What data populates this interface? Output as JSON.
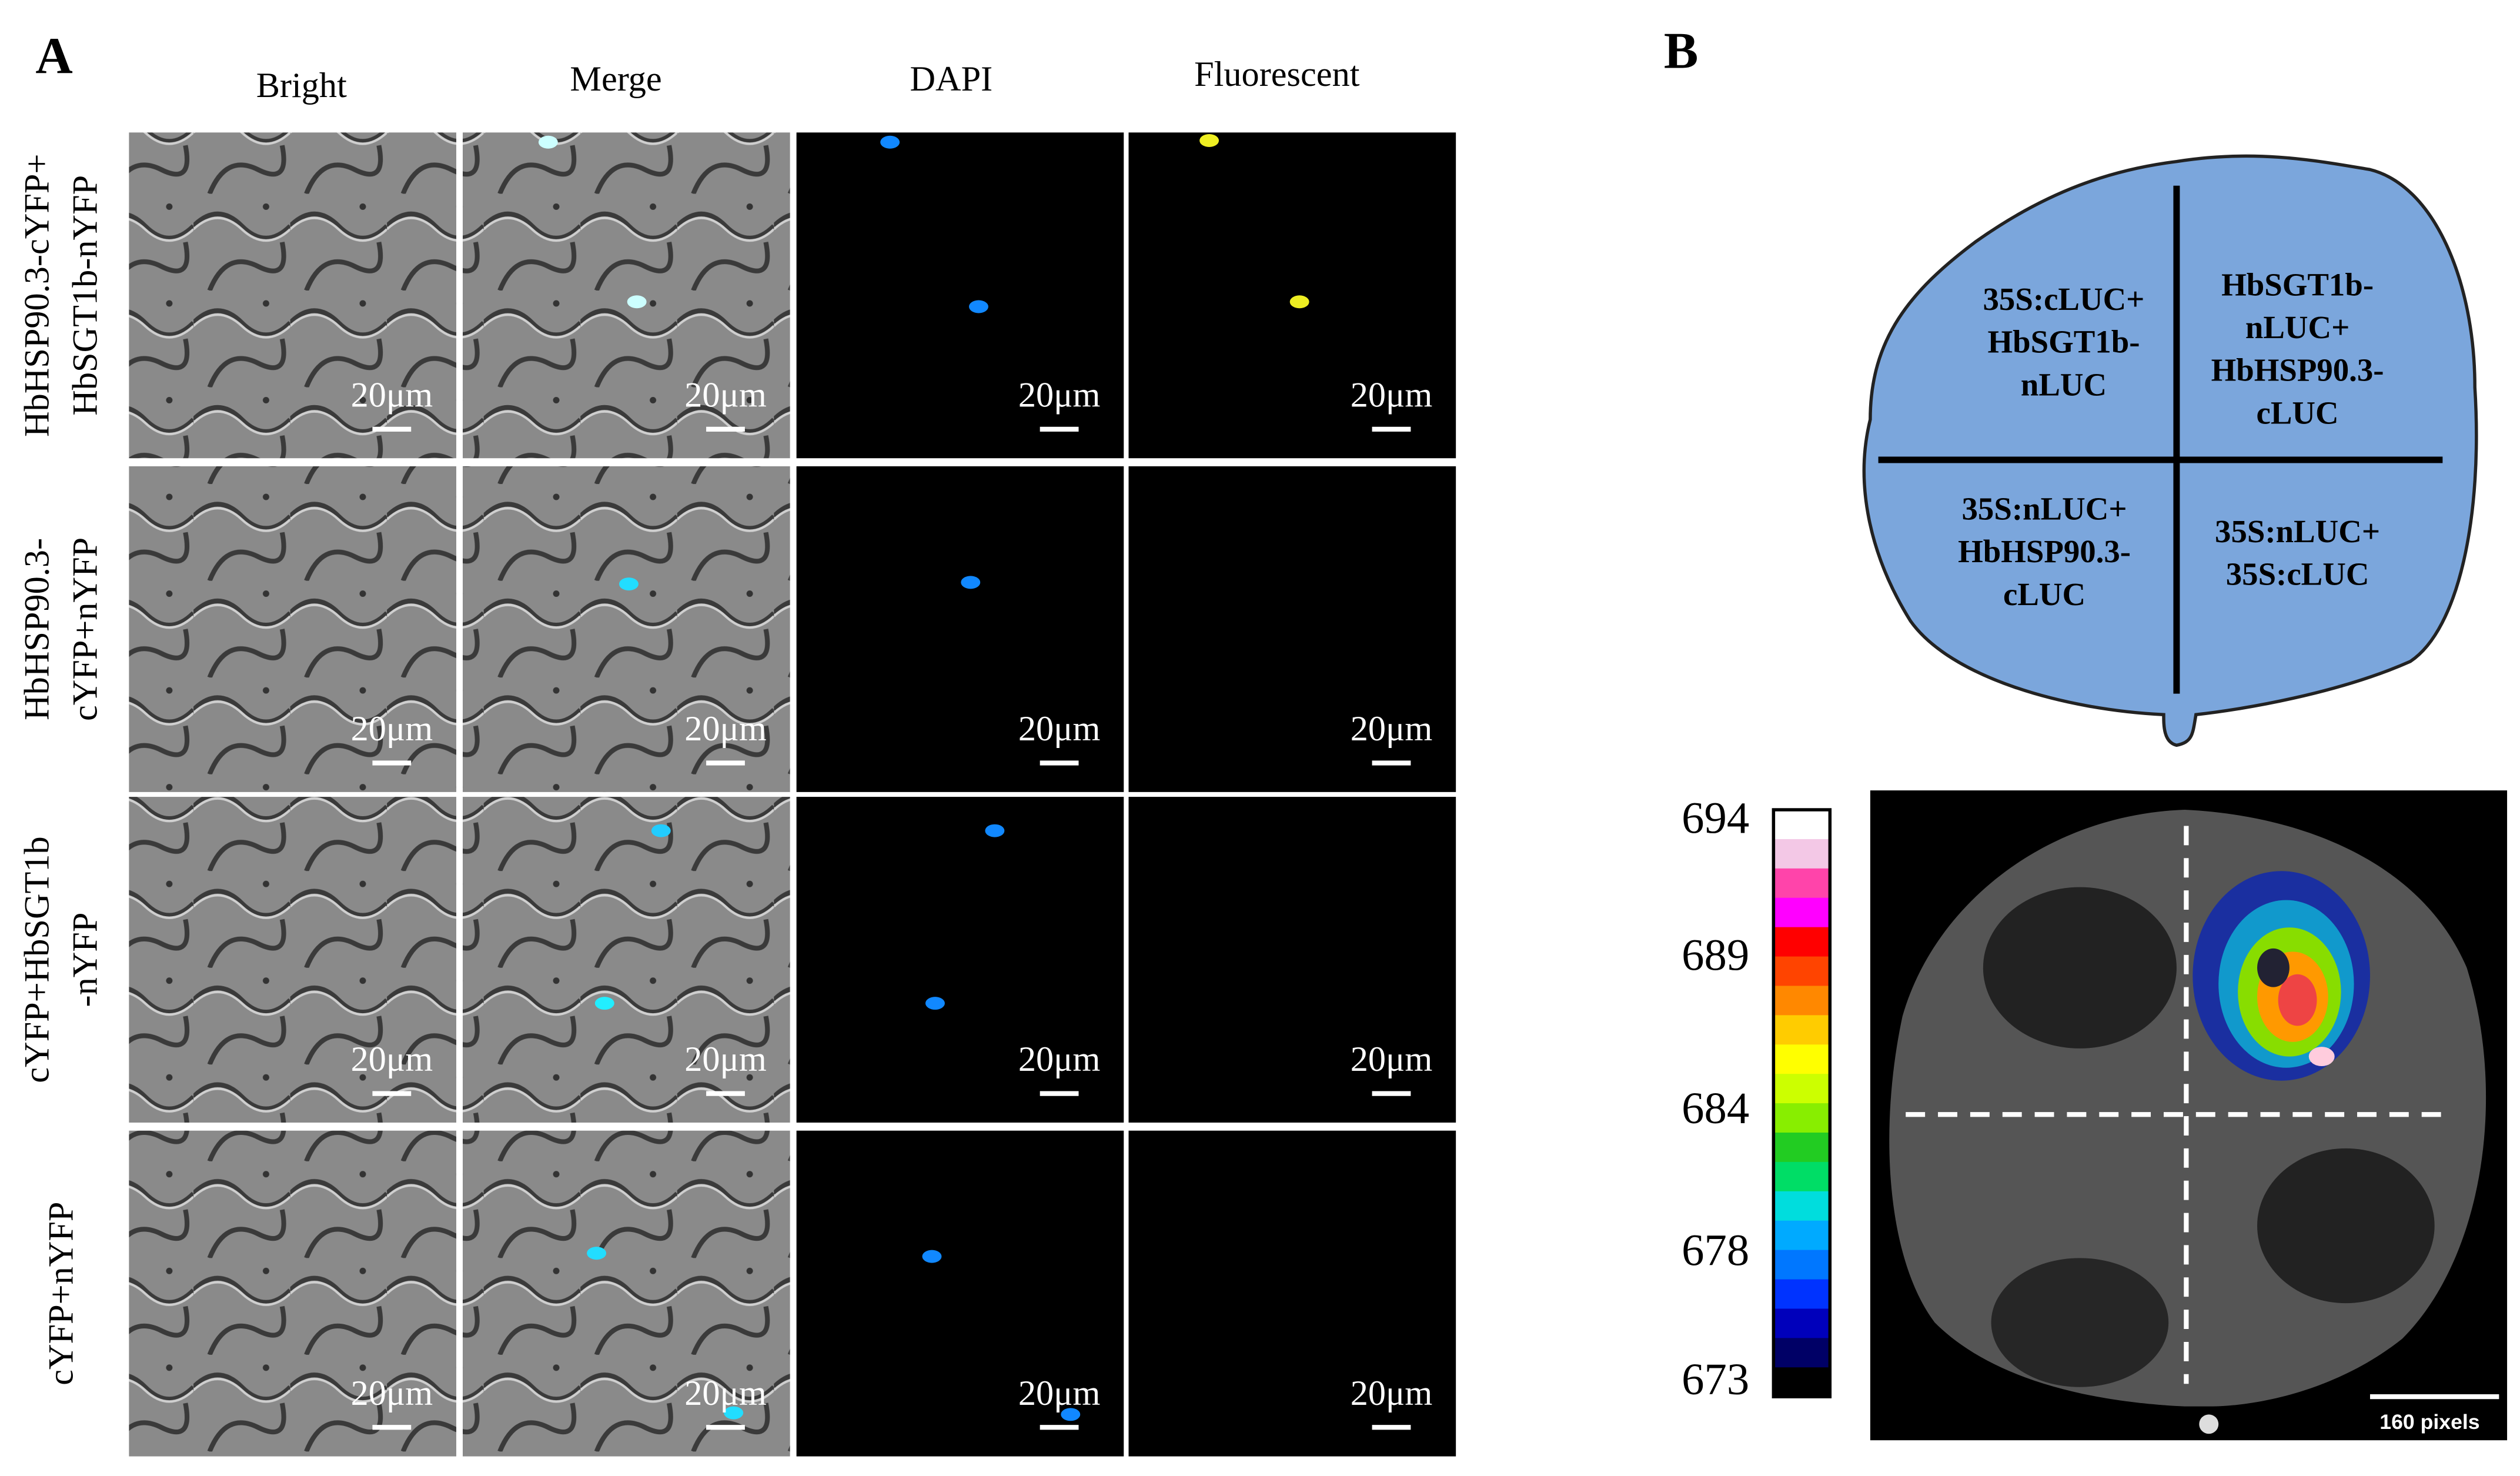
{
  "panel_a": {
    "label": "A",
    "columns": [
      "Bright",
      "Merge",
      "DAPI",
      "Fluorescent"
    ],
    "rows": [
      [
        "HbHSP90.3-cYFP+",
        "HbSGT1b-nYFP"
      ],
      [
        "HbHSP90.3-",
        "cYFP+nYFP"
      ],
      [
        "cYFP+HbSGT1b",
        "-nYFP"
      ],
      [
        "cYFP+nYFP"
      ]
    ],
    "scale_bar": "20μm"
  },
  "panel_b": {
    "label": "B",
    "quadrants": [
      [
        "35S:cLUC+",
        "HbSGT1b-",
        "nLUC"
      ],
      [
        "HbSGT1b-",
        "nLUC+",
        "HbHSP90.3-",
        "cLUC"
      ],
      [
        "35S:nLUC+",
        "HbHSP90.3-",
        "cLUC"
      ],
      [
        "35S:nLUC+",
        "35S:cLUC"
      ]
    ],
    "colorbar_labels": [
      "694",
      "689",
      "684",
      "678",
      "673"
    ],
    "scale_bar": "160 pixels"
  }
}
